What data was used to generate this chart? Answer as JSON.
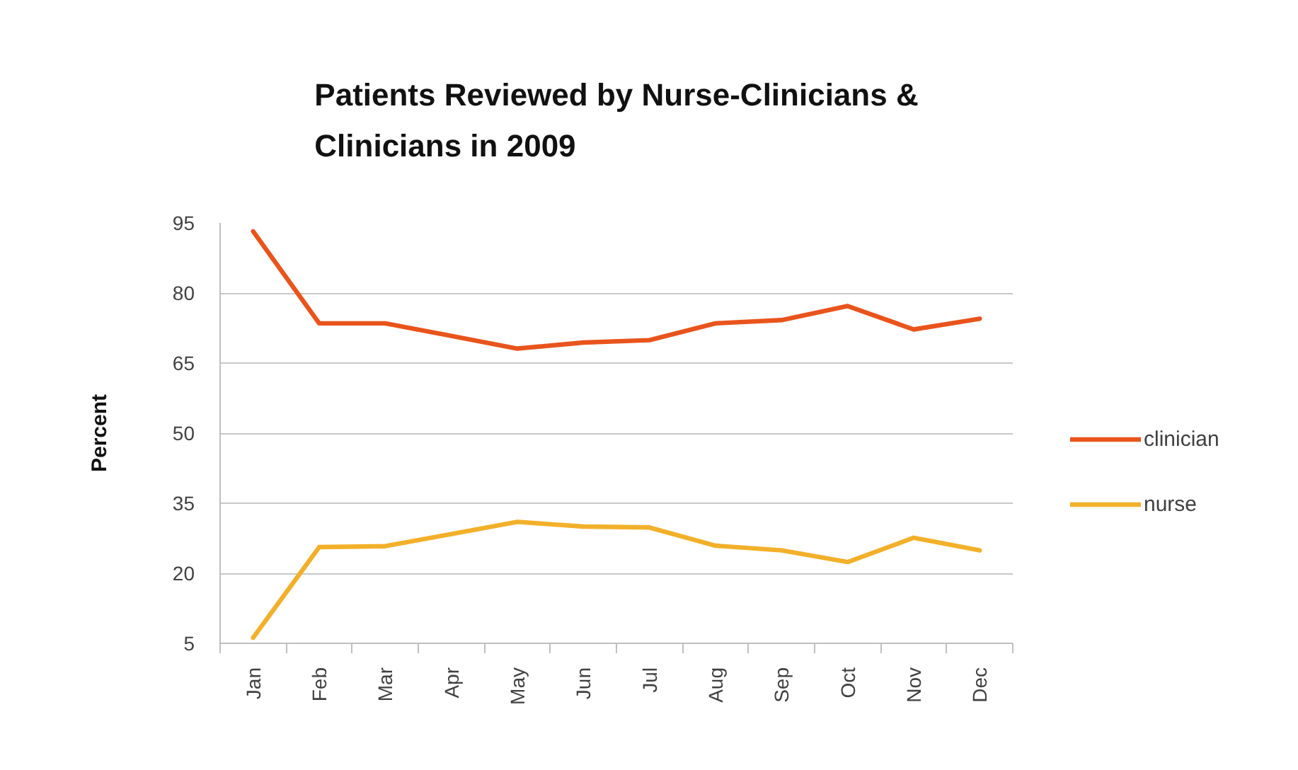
{
  "chart_data": {
    "type": "line",
    "title": "Patients Reviewed by Nurse-Clinicians & Clinicians in 2009",
    "ylabel": "Percent",
    "categories": [
      "Jan",
      "Feb",
      "Mar",
      "Apr",
      "May",
      "Jun",
      "Jul",
      "Aug",
      "Sep",
      "Oct",
      "Nov",
      "Dec"
    ],
    "series": [
      {
        "name": "clinician",
        "color": "#e8541c",
        "values": [
          93.2,
          73.5,
          73.5,
          70.8,
          68.1,
          69.4,
          69.9,
          73.5,
          74.2,
          77.2,
          72.2,
          74.5
        ]
      },
      {
        "name": "nurse",
        "color": "#f2b02a",
        "values": [
          6.2,
          25.6,
          25.8,
          28.4,
          31.0,
          30.0,
          29.8,
          25.9,
          24.9,
          22.4,
          27.6,
          24.9
        ]
      }
    ],
    "ylim": [
      5,
      95
    ],
    "yticks": [
      5,
      20,
      35,
      50,
      65,
      80,
      95
    ],
    "grid": "y",
    "legend": "right",
    "line_style": "solid"
  }
}
